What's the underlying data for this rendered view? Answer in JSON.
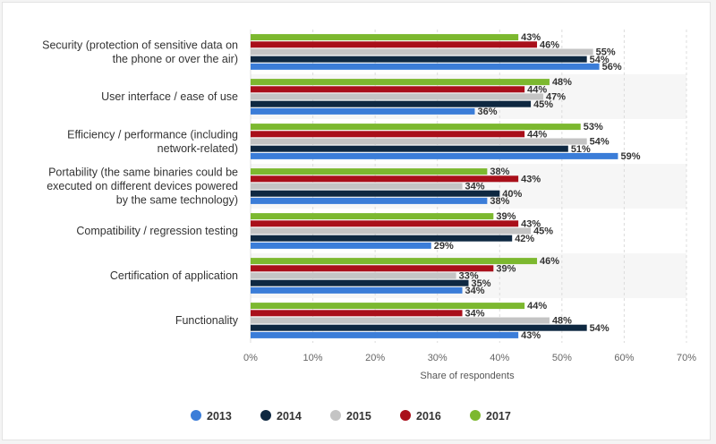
{
  "chart_data": {
    "type": "bar",
    "orientation": "horizontal",
    "categories": [
      [
        "Security (protection of sensitive data on",
        "the phone or over the air)"
      ],
      [
        "User interface / ease of use"
      ],
      [
        "Efficiency / performance (including",
        "network-related)"
      ],
      [
        "Portability (the same binaries could be",
        "executed on different devices powered",
        "by the same technology)"
      ],
      [
        "Compatibility / regression testing"
      ],
      [
        "Certification of application"
      ],
      [
        "Functionality"
      ]
    ],
    "series": [
      {
        "name": "2017",
        "color": "#7cb82f",
        "values": [
          43,
          48,
          53,
          38,
          39,
          46,
          44
        ]
      },
      {
        "name": "2016",
        "color": "#a90f1a",
        "values": [
          46,
          44,
          44,
          43,
          43,
          39,
          34
        ]
      },
      {
        "name": "2015",
        "color": "#c4c4c4",
        "values": [
          55,
          47,
          54,
          34,
          45,
          33,
          48
        ]
      },
      {
        "name": "2014",
        "color": "#0e2841",
        "values": [
          54,
          45,
          51,
          40,
          42,
          35,
          54
        ]
      },
      {
        "name": "2013",
        "color": "#3b7dd8",
        "values": [
          56,
          36,
          59,
          38,
          29,
          34,
          43
        ]
      }
    ],
    "legend_order": [
      "2013",
      "2014",
      "2015",
      "2016",
      "2017"
    ],
    "x_ticks": [
      "0%",
      "10%",
      "20%",
      "30%",
      "40%",
      "50%",
      "60%",
      "70%"
    ],
    "xlim": [
      0,
      70
    ],
    "xlabel": "Share of respondents",
    "value_suffix": "%",
    "legend_position": "bottom",
    "grid": true
  }
}
